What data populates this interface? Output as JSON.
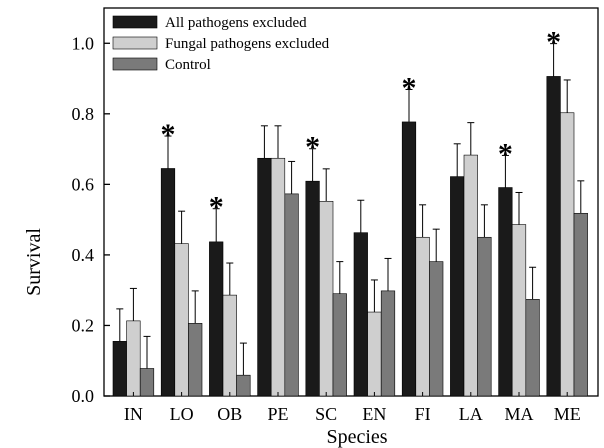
{
  "chart_data": {
    "type": "bar",
    "title": "",
    "xlabel": "Species",
    "ylabel": "Survival",
    "ylim": [
      0,
      1.1
    ],
    "yticks": [
      0.0,
      0.2,
      0.4,
      0.6,
      0.8,
      1.0
    ],
    "ytick_labels": [
      "0.0",
      "0.2",
      "0.4",
      "0.6",
      "0.8",
      "1.0"
    ],
    "grid": false,
    "legend_position": "top-left",
    "categories": [
      "IN",
      "LO",
      "OB",
      "PE",
      "SC",
      "EN",
      "FI",
      "LA",
      "MA",
      "ME"
    ],
    "series": [
      {
        "name": "All pathogens excluded",
        "color": "#1a1a1a",
        "values": [
          0.155,
          0.645,
          0.437,
          0.674,
          0.609,
          0.463,
          0.777,
          0.622,
          0.591,
          0.906
        ],
        "errors": [
          0.092,
          0.092,
          0.094,
          0.092,
          0.092,
          0.092,
          0.092,
          0.093,
          0.091,
          0.093
        ]
      },
      {
        "name": "Fungal pathogens excluded",
        "color": "#cfcfcf",
        "values": [
          0.213,
          0.432,
          0.286,
          0.674,
          0.552,
          0.238,
          0.45,
          0.683,
          0.486,
          0.803
        ],
        "errors": [
          0.092,
          0.092,
          0.091,
          0.092,
          0.092,
          0.091,
          0.092,
          0.092,
          0.091,
          0.093
        ]
      },
      {
        "name": "Control",
        "color": "#7a7a7a",
        "values": [
          0.078,
          0.206,
          0.059,
          0.573,
          0.29,
          0.298,
          0.381,
          0.45,
          0.274,
          0.518
        ],
        "errors": [
          0.091,
          0.092,
          0.091,
          0.092,
          0.091,
          0.092,
          0.092,
          0.092,
          0.091,
          0.092
        ]
      }
    ],
    "annotations": [
      {
        "category": "LO",
        "text": "*"
      },
      {
        "category": "OB",
        "text": "*"
      },
      {
        "category": "SC",
        "text": "*"
      },
      {
        "category": "FI",
        "text": "*"
      },
      {
        "category": "MA",
        "text": "*"
      },
      {
        "category": "ME",
        "text": "*"
      }
    ]
  }
}
